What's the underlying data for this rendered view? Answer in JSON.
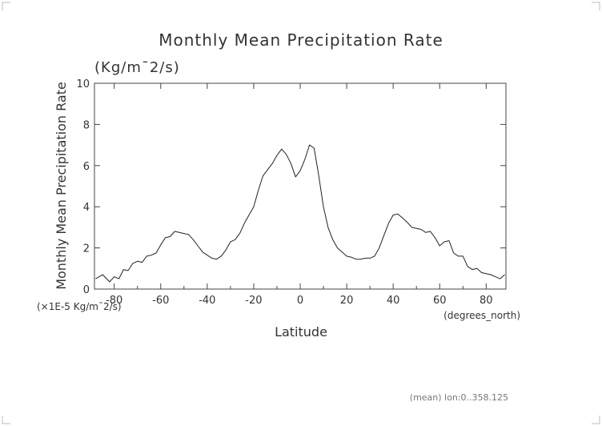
{
  "chart_data": {
    "type": "line",
    "title": "Monthly Mean Precipitation Rate",
    "subtitle": "(Kg/m¯2/s)",
    "xlabel": "Latitude",
    "xunit": "(degrees_north)",
    "ylabel": "Monthly Mean Precipitation Rate",
    "yunit": "(×1E-5 Kg/m¯2/s)",
    "xlim": [
      -88.5,
      88.5
    ],
    "ylim": [
      0,
      10
    ],
    "xticks": [
      -80,
      -60,
      -40,
      -20,
      0,
      20,
      40,
      60,
      80
    ],
    "yticks": [
      0,
      2,
      4,
      6,
      8,
      10
    ],
    "grid": false,
    "footer": "(mean) lon:0..358.125",
    "series": [
      {
        "x": [
          -88,
          -85,
          -82,
          -80,
          -78,
          -76,
          -74,
          -72,
          -70,
          -68,
          -66,
          -64,
          -62,
          -60,
          -58,
          -56,
          -54,
          -52,
          -50,
          -48,
          -46,
          -44,
          -42,
          -40,
          -38,
          -36,
          -34,
          -32,
          -30,
          -28,
          -26,
          -24,
          -22,
          -20,
          -18,
          -16,
          -14,
          -12,
          -10,
          -8,
          -6,
          -4,
          -2,
          0,
          2,
          4,
          6,
          8,
          10,
          12,
          14,
          16,
          18,
          20,
          22,
          24,
          26,
          28,
          30,
          32,
          34,
          36,
          38,
          40,
          42,
          44,
          46,
          48,
          50,
          52,
          54,
          56,
          58,
          60,
          62,
          64,
          66,
          68,
          70,
          72,
          74,
          76,
          78,
          80,
          82,
          84,
          86,
          88
        ],
        "values": [
          0.5,
          0.7,
          0.35,
          0.6,
          0.5,
          0.95,
          0.9,
          1.25,
          1.35,
          1.3,
          1.6,
          1.65,
          1.75,
          2.15,
          2.5,
          2.55,
          2.8,
          2.75,
          2.7,
          2.65,
          2.4,
          2.1,
          1.8,
          1.65,
          1.5,
          1.45,
          1.6,
          1.9,
          2.3,
          2.4,
          2.7,
          3.2,
          3.6,
          4.0,
          4.8,
          5.5,
          5.8,
          6.1,
          6.5,
          6.8,
          6.55,
          6.1,
          5.45,
          5.75,
          6.3,
          7.0,
          6.85,
          5.5,
          4.0,
          3.0,
          2.4,
          2.0,
          1.8,
          1.6,
          1.55,
          1.45,
          1.45,
          1.5,
          1.5,
          1.6,
          2.0,
          2.6,
          3.2,
          3.6,
          3.65,
          3.45,
          3.25,
          3.0,
          2.95,
          2.9,
          2.75,
          2.8,
          2.5,
          2.1,
          2.3,
          2.35,
          1.75,
          1.6,
          1.6,
          1.1,
          0.95,
          1.0,
          0.8,
          0.75,
          0.7,
          0.6,
          0.5,
          0.7
        ]
      }
    ]
  }
}
